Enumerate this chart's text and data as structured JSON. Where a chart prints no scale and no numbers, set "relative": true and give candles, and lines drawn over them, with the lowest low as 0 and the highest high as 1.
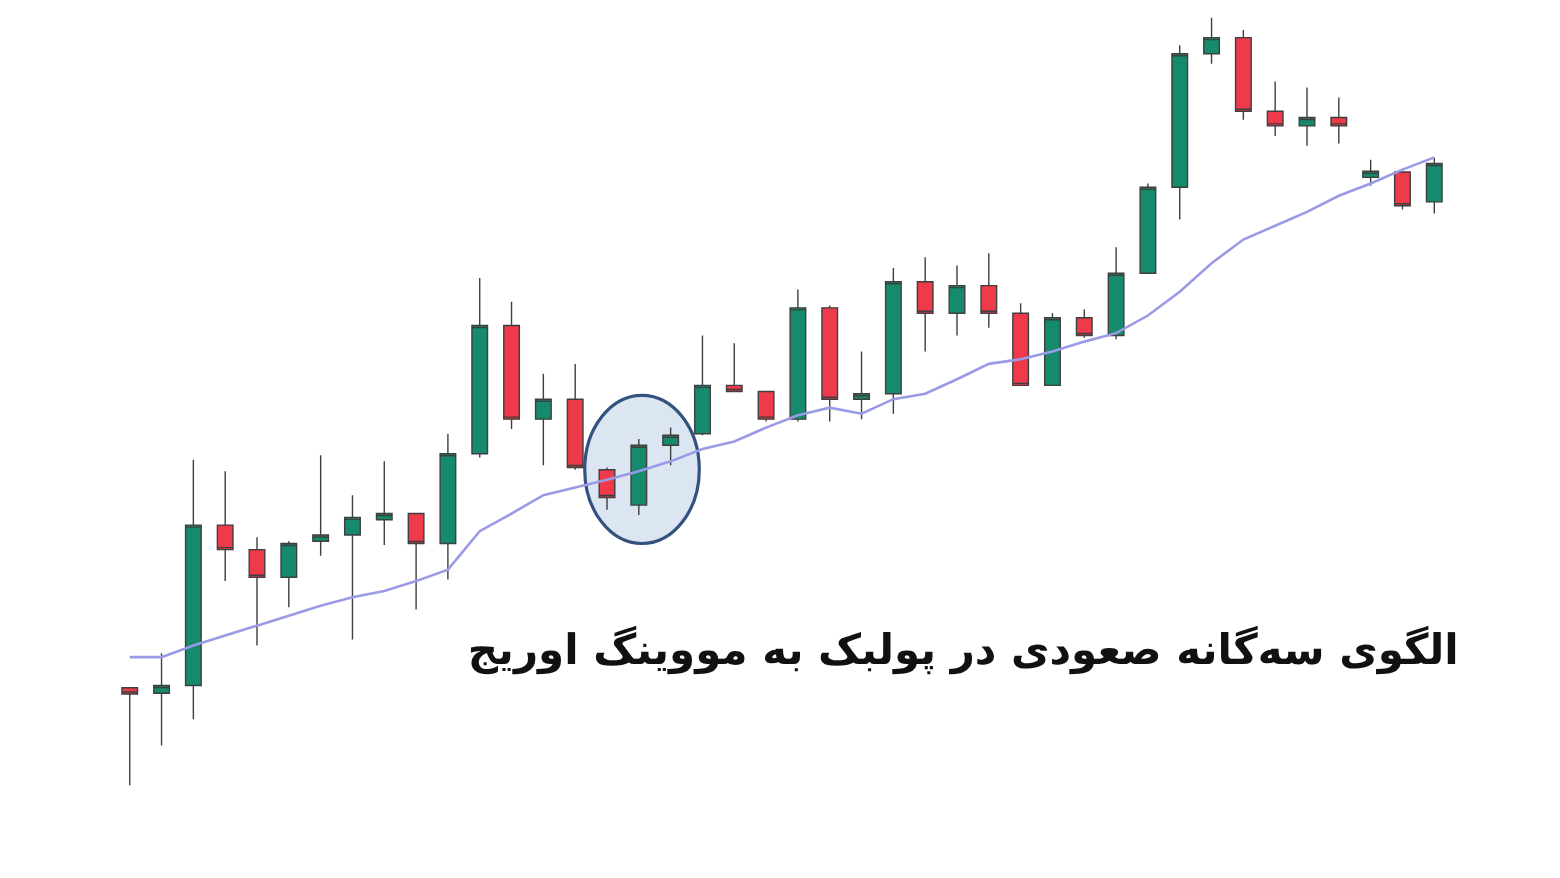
{
  "chart_data": {
    "type": "candlestick",
    "title": "الگوی سه‌گانه صعودی در پولبک به مووینگ اوریج",
    "relative": true,
    "categories": [
      null,
      null,
      null,
      null,
      null,
      null,
      null,
      null,
      null,
      null,
      null,
      null,
      null,
      null,
      null,
      null,
      null,
      null,
      null,
      null,
      null,
      null,
      null,
      null,
      null,
      null,
      null,
      null,
      null,
      null,
      null,
      null,
      null,
      null,
      null,
      null,
      null,
      null,
      null,
      null,
      null,
      null
    ],
    "ohlc": [
      [
        0.127,
        0.127,
        0,
        0.119
      ],
      [
        0.12,
        0.172,
        0.052,
        0.13
      ],
      [
        0.13,
        0.424,
        0.086,
        0.339
      ],
      [
        0.339,
        0.409,
        0.266,
        0.307
      ],
      [
        0.307,
        0.323,
        0.182,
        0.271
      ],
      [
        0.271,
        0.318,
        0.232,
        0.315
      ],
      [
        0.318,
        0.43,
        0.299,
        0.326
      ],
      [
        0.326,
        0.378,
        0.19,
        0.349
      ],
      [
        0.346,
        0.422,
        0.313,
        0.354
      ],
      [
        0.354,
        0.354,
        0.229,
        0.315
      ],
      [
        0.315,
        0.458,
        0.268,
        0.432
      ],
      [
        0.432,
        0.661,
        0.427,
        0.599
      ],
      [
        0.599,
        0.63,
        0.464,
        0.477
      ],
      [
        0.477,
        0.536,
        0.417,
        0.503
      ],
      [
        0.503,
        0.549,
        0.411,
        0.414
      ],
      [
        0.411,
        0.414,
        0.359,
        0.375
      ],
      [
        0.365,
        0.451,
        0.352,
        0.443
      ],
      [
        0.443,
        0.466,
        0.417,
        0.456
      ],
      [
        0.458,
        0.586,
        0.456,
        0.521
      ],
      [
        0.521,
        0.576,
        0.513,
        0.513
      ],
      [
        0.513,
        0.513,
        0.474,
        0.477
      ],
      [
        0.477,
        0.646,
        0.474,
        0.622
      ],
      [
        0.622,
        0.625,
        0.474,
        0.503
      ],
      [
        0.503,
        0.565,
        0.477,
        0.51
      ],
      [
        0.51,
        0.674,
        0.484,
        0.656
      ],
      [
        0.656,
        0.688,
        0.565,
        0.615
      ],
      [
        0.615,
        0.677,
        0.586,
        0.651
      ],
      [
        0.651,
        0.693,
        0.596,
        0.615
      ],
      [
        0.615,
        0.628,
        0.521,
        0.521
      ],
      [
        0.521,
        0.615,
        0.521,
        0.609
      ],
      [
        0.609,
        0.62,
        0.583,
        0.586
      ],
      [
        0.586,
        0.701,
        0.581,
        0.667
      ],
      [
        0.667,
        0.784,
        0.667,
        0.779
      ],
      [
        0.779,
        0.964,
        0.737,
        0.953
      ],
      [
        0.953,
        1,
        0.94,
        0.974
      ],
      [
        0.974,
        0.984,
        0.867,
        0.878
      ],
      [
        0.878,
        0.917,
        0.846,
        0.859
      ],
      [
        0.859,
        0.909,
        0.833,
        0.87
      ],
      [
        0.87,
        0.896,
        0.836,
        0.859
      ],
      [
        0.792,
        0.815,
        0.781,
        0.8
      ],
      [
        0.799,
        0.799,
        0.75,
        0.755
      ],
      [
        0.76,
        0.818,
        0.745,
        0.81
      ]
    ],
    "colors": [
      "#ee3a4b",
      "#168a6c",
      "#168a6c",
      "#ee3a4b",
      "#ee3a4b",
      "#168a6c",
      "#168a6c",
      "#168a6c",
      "#168a6c",
      "#ee3a4b",
      "#168a6c",
      "#168a6c",
      "#ee3a4b",
      "#168a6c",
      "#ee3a4b",
      "#ee3a4b",
      "#168a6c",
      "#168a6c",
      "#168a6c",
      "#ee3a4b",
      "#ee3a4b",
      "#168a6c",
      "#ee3a4b",
      "#168a6c",
      "#168a6c",
      "#ee3a4b",
      "#168a6c",
      "#ee3a4b",
      "#ee3a4b",
      "#168a6c",
      "#ee3a4b",
      "#168a6c",
      "#168a6c",
      "#168a6c",
      "#168a6c",
      "#ee3a4b",
      "#ee3a4b",
      "#168a6c",
      "#ee3a4b",
      "#168a6c",
      "#ee3a4b",
      "#168a6c"
    ],
    "series": [
      {
        "type": "line",
        "color": "#9a9ae6",
        "values": [
          0.167,
          0.167,
          0.182,
          0.195,
          0.208,
          0.221,
          0.234,
          0.245,
          0.253,
          0.266,
          0.281,
          0.331,
          0.354,
          0.378,
          0.388,
          0.398,
          0.409,
          0.422,
          0.438,
          0.448,
          0.466,
          0.482,
          0.492,
          0.484,
          0.503,
          0.51,
          0.529,
          0.549,
          0.555,
          0.565,
          0.578,
          0.589,
          0.612,
          0.643,
          0.68,
          0.711,
          0.729,
          0.747,
          0.768,
          0.784,
          0.802,
          0.818
        ]
      }
    ]
  }
}
